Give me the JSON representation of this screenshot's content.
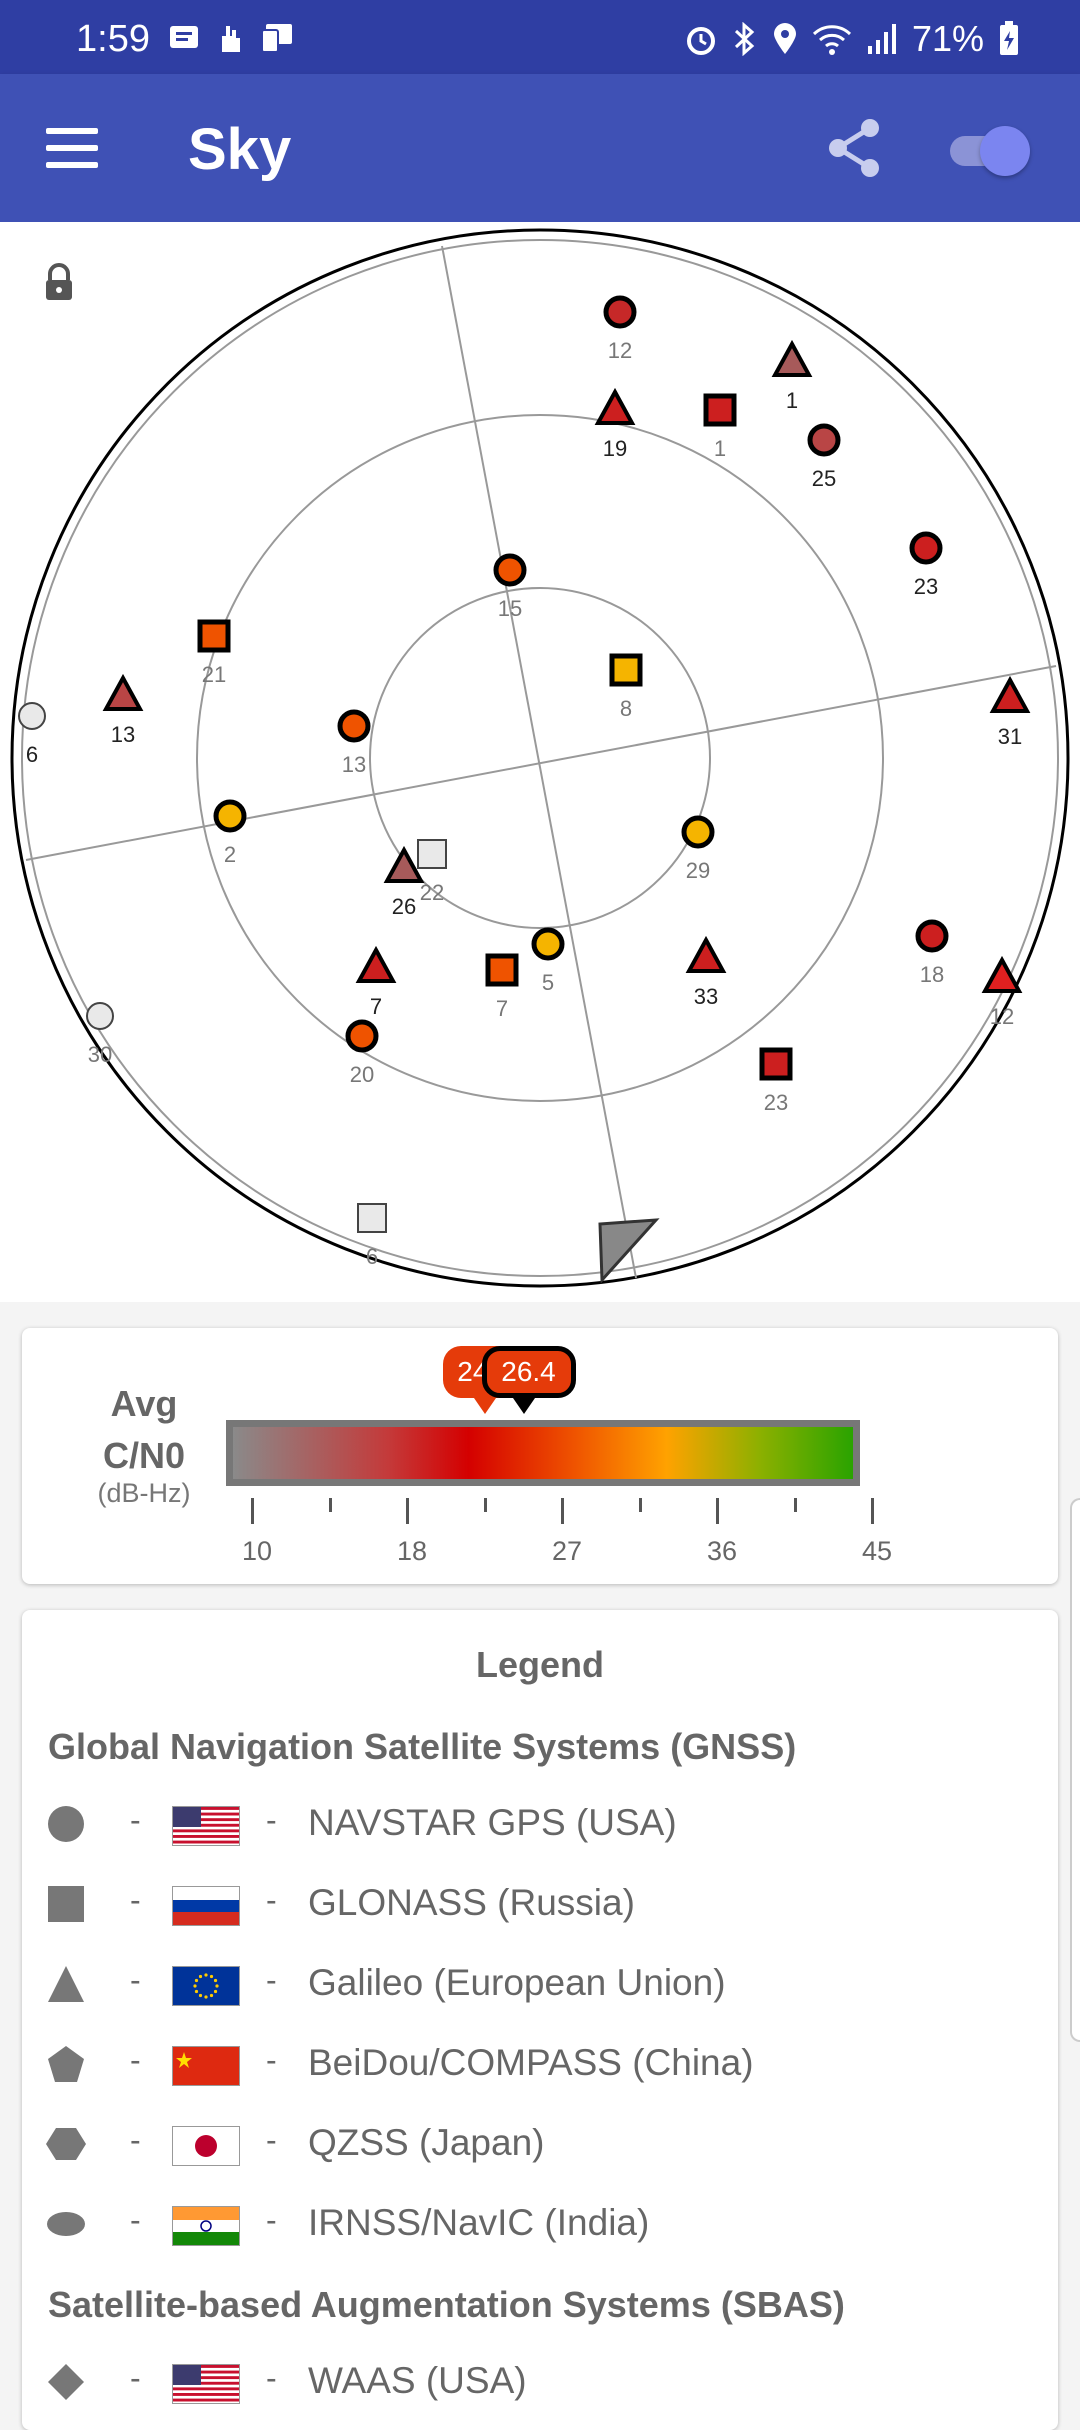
{
  "status_bar": {
    "time": "1:59",
    "battery": "71%"
  },
  "app_bar": {
    "title": "Sky"
  },
  "sky": {
    "satellites": [
      {
        "id": "12",
        "shape": "circle",
        "fill": "#c62828",
        "label": "12",
        "label_dark": false
      },
      {
        "id": "1",
        "shape": "triangle",
        "fill": "#a75a5a",
        "label": "1",
        "label_dark": true
      },
      {
        "id": "19",
        "shape": "triangle",
        "fill": "#cc1f1f",
        "label": "19",
        "label_dark": true
      },
      {
        "id": "1",
        "shape": "square",
        "fill": "#cc1f1f",
        "label": "1",
        "label_dark": false
      },
      {
        "id": "25",
        "shape": "circle",
        "fill": "#b94545",
        "label": "25",
        "label_dark": true
      },
      {
        "id": "23",
        "shape": "circle",
        "fill": "#cc1f1f",
        "label": "23",
        "label_dark": true
      },
      {
        "id": "15",
        "shape": "circle",
        "fill": "#ef5300",
        "label": "15",
        "label_dark": false
      },
      {
        "id": "21",
        "shape": "square",
        "fill": "#ef5300",
        "label": "21",
        "label_dark": false
      },
      {
        "id": "8",
        "shape": "square",
        "fill": "#f5b400",
        "label": "8",
        "label_dark": false
      },
      {
        "id": "13",
        "shape": "triangle",
        "fill": "#b94545",
        "label": "13",
        "label_dark": true
      },
      {
        "id": "31",
        "shape": "triangle",
        "fill": "#cc1f1f",
        "label": "31",
        "label_dark": true
      },
      {
        "id": "6",
        "shape": "circle",
        "fill": "#e9e9e9",
        "label": "6",
        "label_dark": true
      },
      {
        "id": "13",
        "shape": "circle",
        "fill": "#ef5300",
        "label": "13",
        "label_dark": false
      },
      {
        "id": "2",
        "shape": "circle",
        "fill": "#f5b400",
        "label": "2",
        "label_dark": false
      },
      {
        "id": "29",
        "shape": "circle",
        "fill": "#f5b400",
        "label": "29",
        "label_dark": false
      },
      {
        "id": "22",
        "shape": "square",
        "fill": "#e9e9e9",
        "label": "22",
        "label_dark": false
      },
      {
        "id": "26",
        "shape": "triangle",
        "fill": "#a75a5a",
        "label": "26",
        "label_dark": true
      },
      {
        "id": "5",
        "shape": "circle",
        "fill": "#f5b400",
        "label": "5",
        "label_dark": false
      },
      {
        "id": "7",
        "shape": "triangle",
        "fill": "#cc1f1f",
        "label": "7",
        "label_dark": true
      },
      {
        "id": "7",
        "shape": "square",
        "fill": "#ef5300",
        "label": "7",
        "label_dark": false
      },
      {
        "id": "33",
        "shape": "triangle",
        "fill": "#cc1f1f",
        "label": "33",
        "label_dark": true
      },
      {
        "id": "18",
        "shape": "circle",
        "fill": "#cc1f1f",
        "label": "18",
        "label_dark": false
      },
      {
        "id": "12",
        "shape": "triangle",
        "fill": "#e02020",
        "label": "12",
        "label_dark": false
      },
      {
        "id": "30",
        "shape": "circle",
        "fill": "#e9e9e9",
        "label": "30",
        "label_dark": false
      },
      {
        "id": "20",
        "shape": "circle",
        "fill": "#ef5300",
        "label": "20",
        "label_dark": false
      },
      {
        "id": "23",
        "shape": "square",
        "fill": "#cc1f1f",
        "label": "23",
        "label_dark": false
      },
      {
        "id": "6",
        "shape": "square",
        "fill": "#e9e9e9",
        "label": "6",
        "label_dark": false
      }
    ]
  },
  "cn0": {
    "title_line1": "Avg",
    "title_line2": "C/N0",
    "unit": "(dB-Hz)",
    "scale_min": 10,
    "scale_max": 45,
    "tick_labels": [
      "10",
      "18",
      "27",
      "36",
      "45"
    ],
    "markers": [
      {
        "value": 24.2,
        "label": "24.2",
        "style": "filled"
      },
      {
        "value": 26.4,
        "label": "26.4",
        "style": "outlined"
      }
    ]
  },
  "legend": {
    "title": "Legend",
    "gnss_title": "Global Navigation Satellite Systems (GNSS)",
    "sbas_title": "Satellite-based Augmentation Systems (SBAS)",
    "gnss_items": [
      {
        "shape": "circle",
        "flag": "usa",
        "label": "NAVSTAR GPS (USA)"
      },
      {
        "shape": "square",
        "flag": "russia",
        "label": "GLONASS (Russia)"
      },
      {
        "shape": "triangle",
        "flag": "eu",
        "label": "Galileo (European Union)"
      },
      {
        "shape": "pentagon",
        "flag": "china",
        "label": "BeiDou/COMPASS (China)"
      },
      {
        "shape": "hexagon",
        "flag": "japan",
        "label": "QZSS (Japan)"
      },
      {
        "shape": "oval",
        "flag": "india",
        "label": "IRNSS/NavIC (India)"
      }
    ],
    "sbas_items": [
      {
        "shape": "diamond",
        "flag": "usa",
        "label": "WAAS (USA)"
      }
    ],
    "dash": "-"
  }
}
